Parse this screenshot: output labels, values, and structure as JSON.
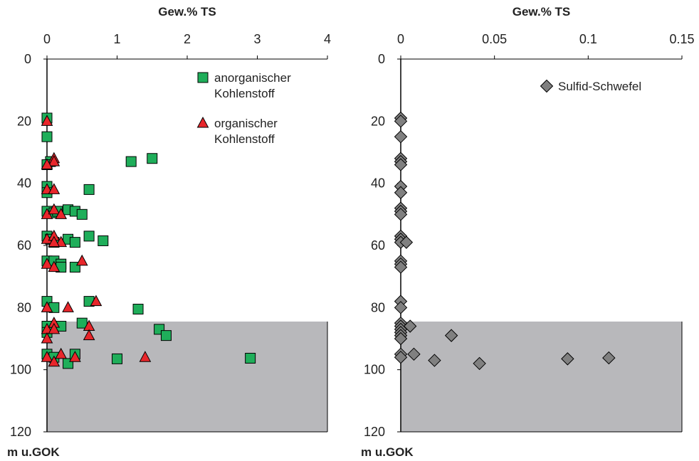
{
  "chart_data": [
    {
      "type": "scatter",
      "x_axis_title": "Gew.% TS",
      "y_axis_title": "m u.GOK",
      "xlim": [
        0,
        4
      ],
      "ylim": [
        0,
        120
      ],
      "x_ticks": [
        "0",
        "1",
        "2",
        "3",
        "4"
      ],
      "y_ticks": [
        "0",
        "20",
        "40",
        "60",
        "80",
        "100",
        "120"
      ],
      "y_inverted": true,
      "shaded_depth_range": [
        84.5,
        120
      ],
      "shade_color": "#b8b8bb",
      "legend_position": "top-right",
      "series": [
        {
          "name": "anorganischer Kohlenstoff",
          "legend_lines": [
            "anorganischer",
            "Kohlenstoff"
          ],
          "marker": "square",
          "color": "#1fae5a",
          "points": [
            [
              0,
              19
            ],
            [
              0,
              25
            ],
            [
              0.05,
              33
            ],
            [
              0,
              34
            ],
            [
              1.2,
              33
            ],
            [
              1.5,
              32
            ],
            [
              0,
              41
            ],
            [
              0,
              43
            ],
            [
              0.6,
              42
            ],
            [
              0,
              49
            ],
            [
              0.1,
              49.5
            ],
            [
              0.15,
              49
            ],
            [
              0.3,
              48.5
            ],
            [
              0.4,
              49
            ],
            [
              0.5,
              50
            ],
            [
              0,
              57
            ],
            [
              0.05,
              58
            ],
            [
              0.1,
              59
            ],
            [
              0.3,
              58
            ],
            [
              0.4,
              59
            ],
            [
              0.6,
              57
            ],
            [
              0.8,
              58.5
            ],
            [
              0,
              65
            ],
            [
              0.1,
              65
            ],
            [
              0.2,
              66
            ],
            [
              0.2,
              67
            ],
            [
              0.4,
              67
            ],
            [
              0,
              78
            ],
            [
              0.1,
              80
            ],
            [
              0.6,
              78
            ],
            [
              1.3,
              80.5
            ],
            [
              0,
              86
            ],
            [
              0,
              88
            ],
            [
              0.2,
              86
            ],
            [
              0.5,
              85
            ],
            [
              1.6,
              87
            ],
            [
              1.7,
              89
            ],
            [
              0,
              95
            ],
            [
              0.1,
              96
            ],
            [
              0.3,
              98
            ],
            [
              0.4,
              95
            ],
            [
              1.0,
              96.5
            ],
            [
              2.9,
              96.3
            ]
          ]
        },
        {
          "name": "organischer Kohlenstoff",
          "legend_lines": [
            "organischer",
            "Kohlenstoff"
          ],
          "marker": "triangle",
          "color": "#e8262b",
          "points": [
            [
              0,
              20
            ],
            [
              0.1,
              32
            ],
            [
              0.1,
              33
            ],
            [
              0,
              34
            ],
            [
              0,
              42
            ],
            [
              0.1,
              42
            ],
            [
              0,
              50
            ],
            [
              0.1,
              48.5
            ],
            [
              0.2,
              50
            ],
            [
              0,
              58
            ],
            [
              0.1,
              57
            ],
            [
              0.2,
              59
            ],
            [
              0.1,
              59
            ],
            [
              0,
              66
            ],
            [
              0.1,
              67
            ],
            [
              0.5,
              65
            ],
            [
              0,
              80
            ],
            [
              0.3,
              80
            ],
            [
              0.7,
              78
            ],
            [
              0,
              87
            ],
            [
              0,
              90
            ],
            [
              0.1,
              85
            ],
            [
              0.1,
              87
            ],
            [
              0.6,
              86
            ],
            [
              0.6,
              89
            ],
            [
              0,
              96
            ],
            [
              0.1,
              97.5
            ],
            [
              0.2,
              95
            ],
            [
              0.4,
              96
            ],
            [
              1.4,
              96
            ]
          ]
        }
      ]
    },
    {
      "type": "scatter",
      "x_axis_title": "Gew.% TS",
      "y_axis_title": "m u.GOK",
      "xlim": [
        0,
        0.15
      ],
      "ylim": [
        0,
        120
      ],
      "x_ticks": [
        "0",
        "0.05",
        "0.1",
        "0.15"
      ],
      "y_ticks": [
        "0",
        "20",
        "40",
        "60",
        "80",
        "100",
        "120"
      ],
      "y_inverted": true,
      "shaded_depth_range": [
        84.5,
        120
      ],
      "shade_color": "#b8b8bb",
      "legend_position": "top-right",
      "series": [
        {
          "name": "Sulfid-Schwefel",
          "legend_lines": [
            "Sulfid-Schwefel"
          ],
          "marker": "diamond",
          "color": "#808080",
          "points": [
            [
              0,
              19
            ],
            [
              0,
              20
            ],
            [
              0,
              25
            ],
            [
              0,
              32
            ],
            [
              0,
              33
            ],
            [
              0,
              34
            ],
            [
              0,
              41
            ],
            [
              0,
              43
            ],
            [
              0,
              48
            ],
            [
              0,
              49
            ],
            [
              0,
              50
            ],
            [
              0,
              57
            ],
            [
              0,
              58
            ],
            [
              0,
              59
            ],
            [
              0.003,
              59
            ],
            [
              0,
              65
            ],
            [
              0,
              66
            ],
            [
              0,
              67
            ],
            [
              0,
              78
            ],
            [
              0,
              80
            ],
            [
              0,
              85
            ],
            [
              0,
              86
            ],
            [
              0,
              87
            ],
            [
              0,
              88
            ],
            [
              0,
              89
            ],
            [
              0,
              90
            ],
            [
              0.005,
              86
            ],
            [
              0.027,
              89
            ],
            [
              0,
              95
            ],
            [
              0,
              96
            ],
            [
              0.007,
              95
            ],
            [
              0.018,
              97
            ],
            [
              0.042,
              98
            ],
            [
              0.089,
              96.5
            ],
            [
              0.111,
              96.2
            ]
          ]
        }
      ]
    }
  ]
}
